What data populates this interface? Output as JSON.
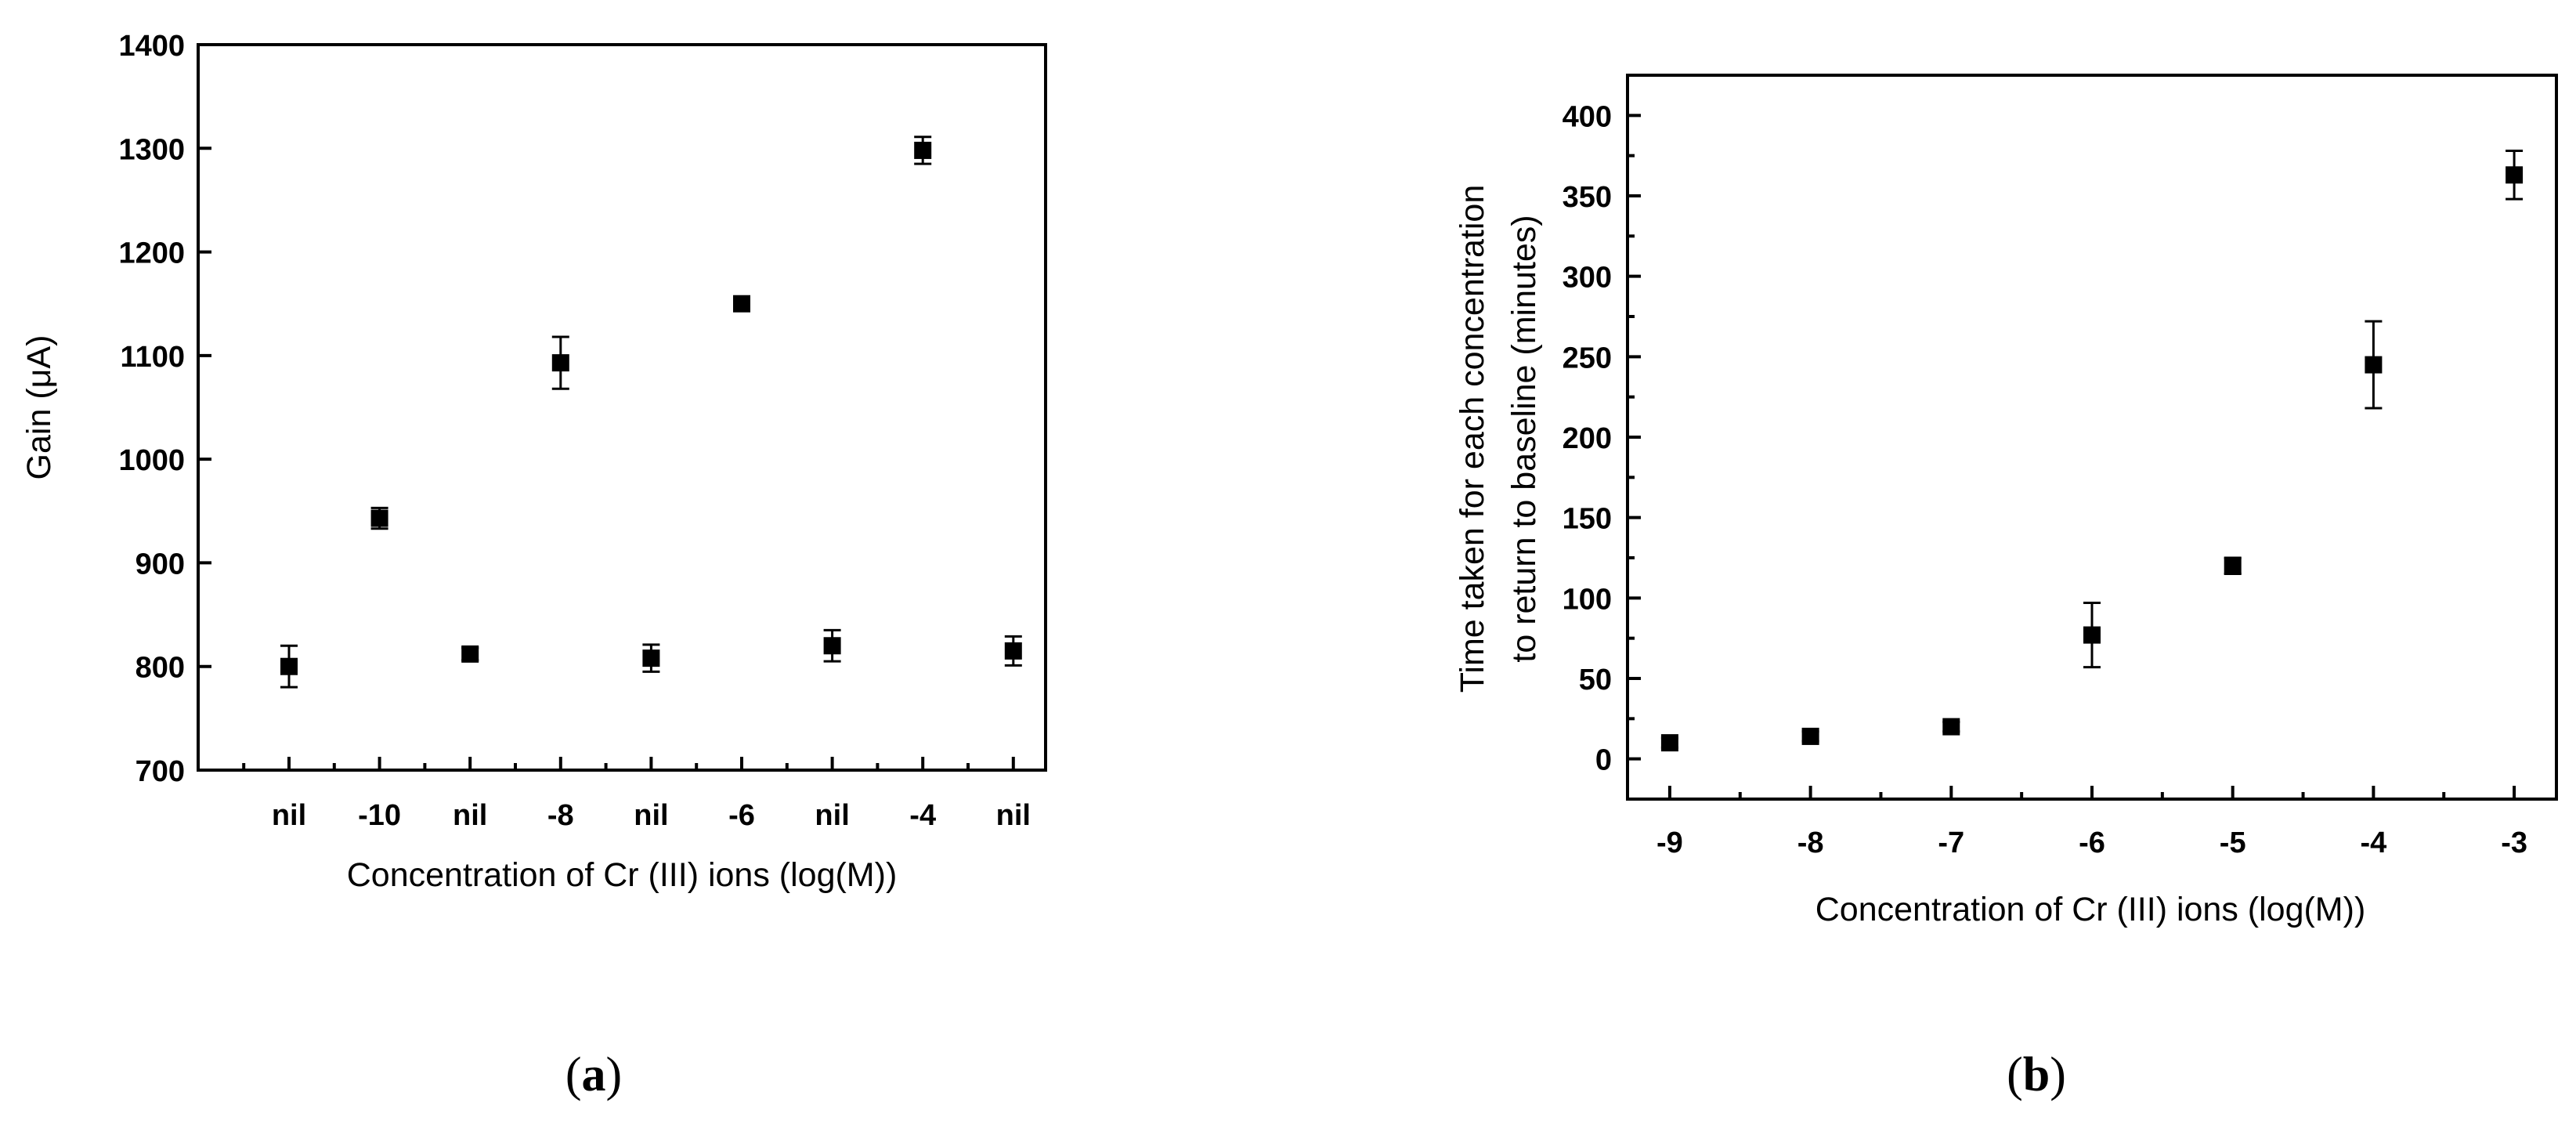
{
  "chart_data": [
    {
      "type": "scatter",
      "panel_label": "a",
      "xlabel": "Concentration of Cr (III) ions (log(M))",
      "ylabel": "Gain (μA)",
      "categories": [
        "nil",
        "-10",
        "nil",
        "-8",
        "nil",
        "-6",
        "nil",
        "-4",
        "nil"
      ],
      "values": [
        800,
        943,
        812,
        1093,
        808,
        1150,
        820,
        1298,
        815
      ],
      "errors": [
        20,
        10,
        6,
        25,
        13,
        4,
        15,
        13,
        14
      ],
      "ylim": [
        700,
        1400
      ],
      "yticks": [
        700,
        800,
        900,
        1000,
        1100,
        1200,
        1300,
        1400
      ],
      "grid": false,
      "legend": "none"
    },
    {
      "type": "scatter",
      "panel_label": "b",
      "xlabel": "Concentration of Cr (III) ions (log(M))",
      "ylabel_lines": [
        "Time taken for each concentration",
        "to return to baseline (minutes)"
      ],
      "x": [
        -9,
        -8,
        -7,
        -6,
        -5,
        -4,
        -3
      ],
      "values": [
        10,
        14,
        20,
        77,
        120,
        245,
        363
      ],
      "errors": [
        3,
        3,
        3,
        20,
        5,
        27,
        15
      ],
      "xlim": [
        -9.3,
        -2.7
      ],
      "xticks": [
        -9,
        -8,
        -7,
        -6,
        -5,
        -4,
        -3
      ],
      "ylim": [
        -25,
        425
      ],
      "yticks": [
        0,
        50,
        100,
        150,
        200,
        250,
        300,
        350,
        400
      ],
      "grid": false,
      "legend": "none"
    }
  ]
}
